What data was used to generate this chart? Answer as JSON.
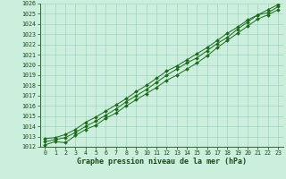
{
  "x": [
    0,
    1,
    2,
    3,
    4,
    5,
    6,
    7,
    8,
    9,
    10,
    11,
    12,
    13,
    14,
    15,
    16,
    17,
    18,
    19,
    20,
    21,
    22,
    23
  ],
  "line1": [
    1012.2,
    1012.5,
    1012.4,
    1013.1,
    1013.7,
    1014.1,
    1014.8,
    1015.3,
    1016.0,
    1016.6,
    1017.2,
    1017.8,
    1018.5,
    1019.0,
    1019.6,
    1020.2,
    1020.9,
    1021.7,
    1022.4,
    1023.1,
    1023.8,
    1024.5,
    1024.9,
    1025.4
  ],
  "line2": [
    1012.5,
    1012.7,
    1012.9,
    1013.4,
    1014.0,
    1014.5,
    1015.1,
    1015.7,
    1016.4,
    1017.0,
    1017.6,
    1018.3,
    1019.0,
    1019.6,
    1020.2,
    1020.7,
    1021.4,
    1022.1,
    1022.7,
    1023.5,
    1024.2,
    1024.9,
    1025.1,
    1025.7
  ],
  "line3": [
    1012.8,
    1012.9,
    1013.2,
    1013.7,
    1014.4,
    1014.9,
    1015.5,
    1016.1,
    1016.7,
    1017.4,
    1018.0,
    1018.7,
    1019.4,
    1019.9,
    1020.5,
    1021.1,
    1021.7,
    1022.4,
    1023.1,
    1023.7,
    1024.4,
    1024.9,
    1025.4,
    1025.9
  ],
  "line_color": "#1a6b1a",
  "bg_color": "#cceedd",
  "grid_color": "#99ccbb",
  "xlabel": "Graphe pression niveau de la mer (hPa)",
  "ylim": [
    1012,
    1026
  ],
  "xlim": [
    -0.5,
    23.5
  ],
  "yticks": [
    1012,
    1013,
    1014,
    1015,
    1016,
    1017,
    1018,
    1019,
    1020,
    1021,
    1022,
    1023,
    1024,
    1025,
    1026
  ],
  "xticks": [
    0,
    1,
    2,
    3,
    4,
    5,
    6,
    7,
    8,
    9,
    10,
    11,
    12,
    13,
    14,
    15,
    16,
    17,
    18,
    19,
    20,
    21,
    22,
    23
  ],
  "marker": "D",
  "markersize": 2.0,
  "linewidth": 0.7,
  "xlabel_fontsize": 6.0,
  "tick_fontsize": 4.8,
  "tick_color": "#1a4a1a",
  "spine_color": "#336633"
}
